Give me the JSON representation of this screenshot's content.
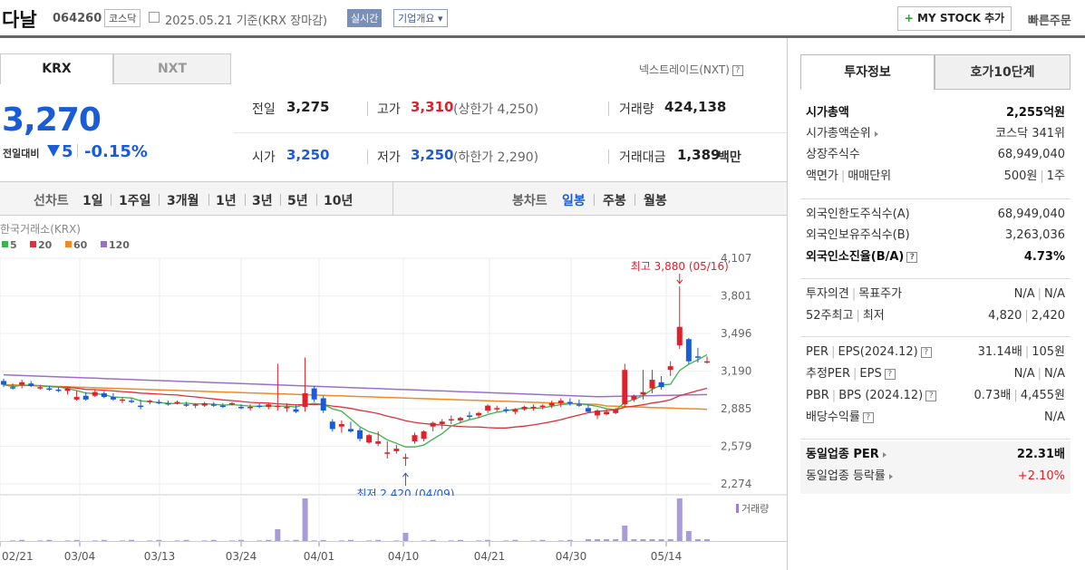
{
  "header": {
    "name": "다날",
    "code": "064260",
    "market": "코스닥",
    "date": "2025.05.21 기준(KRX 장마감)",
    "realtime": "실시간",
    "company": "기업개요 ▾",
    "mystock": "MY STOCK 추가",
    "fast_order": "빠른주문"
  },
  "tabs": {
    "krx": "KRX",
    "nxt": "NXT",
    "nxt_link": "넥스트레이드(NXT)"
  },
  "quote": {
    "price": "3,270",
    "change_label": "전일대비",
    "change": "5",
    "change_pct": "-0.15%",
    "prev_lbl": "전일",
    "prev": "3,275",
    "high_lbl": "고가",
    "high": "3,310",
    "upper": "(상한가 4,250)",
    "vol_lbl": "거래량",
    "volume": "424,138",
    "open_lbl": "시가",
    "open": "3,250",
    "low_lbl": "저가",
    "low": "3,250",
    "lower": "(하한가 2,290)",
    "amt_lbl": "거래대금",
    "amount": "1,389",
    "amount_unit": "백만"
  },
  "periods": {
    "line_label": "선차트",
    "line": [
      "1일",
      "1주일",
      "3개월",
      "1년",
      "3년",
      "5년",
      "10년"
    ],
    "candle_label": "봉차트",
    "candle": [
      "일봉",
      "주봉",
      "월봉"
    ]
  },
  "chart_data": {
    "type": "candlestick",
    "title": "한국거래소(KRX)",
    "legend": [
      {
        "name": "5",
        "color": "#3cb44b"
      },
      {
        "name": "20",
        "color": "#e0303a"
      },
      {
        "name": "60",
        "color": "#f08a24"
      },
      {
        "name": "120",
        "color": "#9b6fd0"
      }
    ],
    "yticks": [
      4107,
      3801,
      3496,
      3190,
      2885,
      2579,
      2274
    ],
    "ylim": [
      2274,
      4107
    ],
    "xticks": [
      "02/21",
      "03/04",
      "03/13",
      "03/24",
      "04/01",
      "04/10",
      "04/21",
      "04/30",
      "05/14"
    ],
    "high_note": "최고 3,880 (05/16)",
    "low_note": "최저 2,420 (04/09)",
    "volume_label": "거래량"
  },
  "info": {
    "tab1": "투자정보",
    "tab2": "호가10단계",
    "mcap_l": "시가총액",
    "mcap": "2,255억원",
    "rank_l": "시가총액순위",
    "rank": "코스닥 341위",
    "shares_l": "상장주식수",
    "shares": "68,949,040",
    "par_l": "액면가",
    "unit_l": "매매단위",
    "par": "500원",
    "unit": "1주",
    "flim_l": "외국인한도주식수(A)",
    "flim": "68,949,040",
    "fown_l": "외국인보유주식수(B)",
    "fown": "3,263,036",
    "fratio_l": "외국인소진율(B/A)",
    "fratio": "4.73%",
    "opinion_l": "투자의견",
    "target_l": "목표주가",
    "opinion": "N/A",
    "target": "N/A",
    "w52_l": "52주최고",
    "w52low_l": "최저",
    "w52h": "4,820",
    "w52l": "2,420",
    "per_l": "PER",
    "eps_l": "EPS(2024.12)",
    "per": "31.14배",
    "eps": "105원",
    "eper_l": "추정PER",
    "eeps_l": "EPS",
    "eper": "N/A",
    "eeps": "N/A",
    "pbr_l": "PBR",
    "bps_l": "BPS (2024.12)",
    "pbr": "0.73배",
    "bps": "4,455원",
    "div_l": "배당수익률",
    "div": "N/A",
    "ind_per_l": "동일업종 PER",
    "ind_per": "22.31배",
    "ind_chg_l": "동일업종 등락률",
    "ind_chg": "+2.10%"
  }
}
